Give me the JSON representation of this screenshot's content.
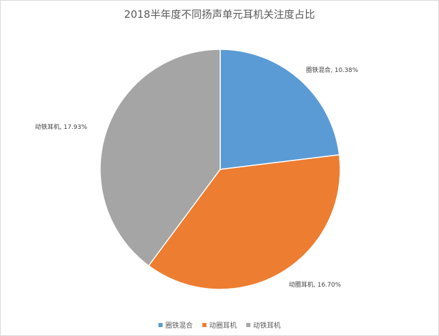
{
  "chart_data": {
    "type": "pie",
    "title": "2018半年度不同扬声单元耳机关注度占比",
    "slices": [
      {
        "name": "圈铁混合",
        "label": "圈铁混合, 10.38%",
        "value": 10.38,
        "color": "#5b9bd5"
      },
      {
        "name": "动圈耳机",
        "label": "动圈耳机, 16.70%",
        "value": 16.7,
        "color": "#ed7d31"
      },
      {
        "name": "动铁耳机",
        "label": "动铁耳机, 17.93%",
        "value": 17.93,
        "color": "#a5a5a5"
      }
    ],
    "legend": {
      "position": "bottom",
      "items": [
        "圈铁混合",
        "动圈耳机",
        "动铁耳机"
      ]
    },
    "start_angle_deg": 0,
    "direction": "clockwise"
  }
}
